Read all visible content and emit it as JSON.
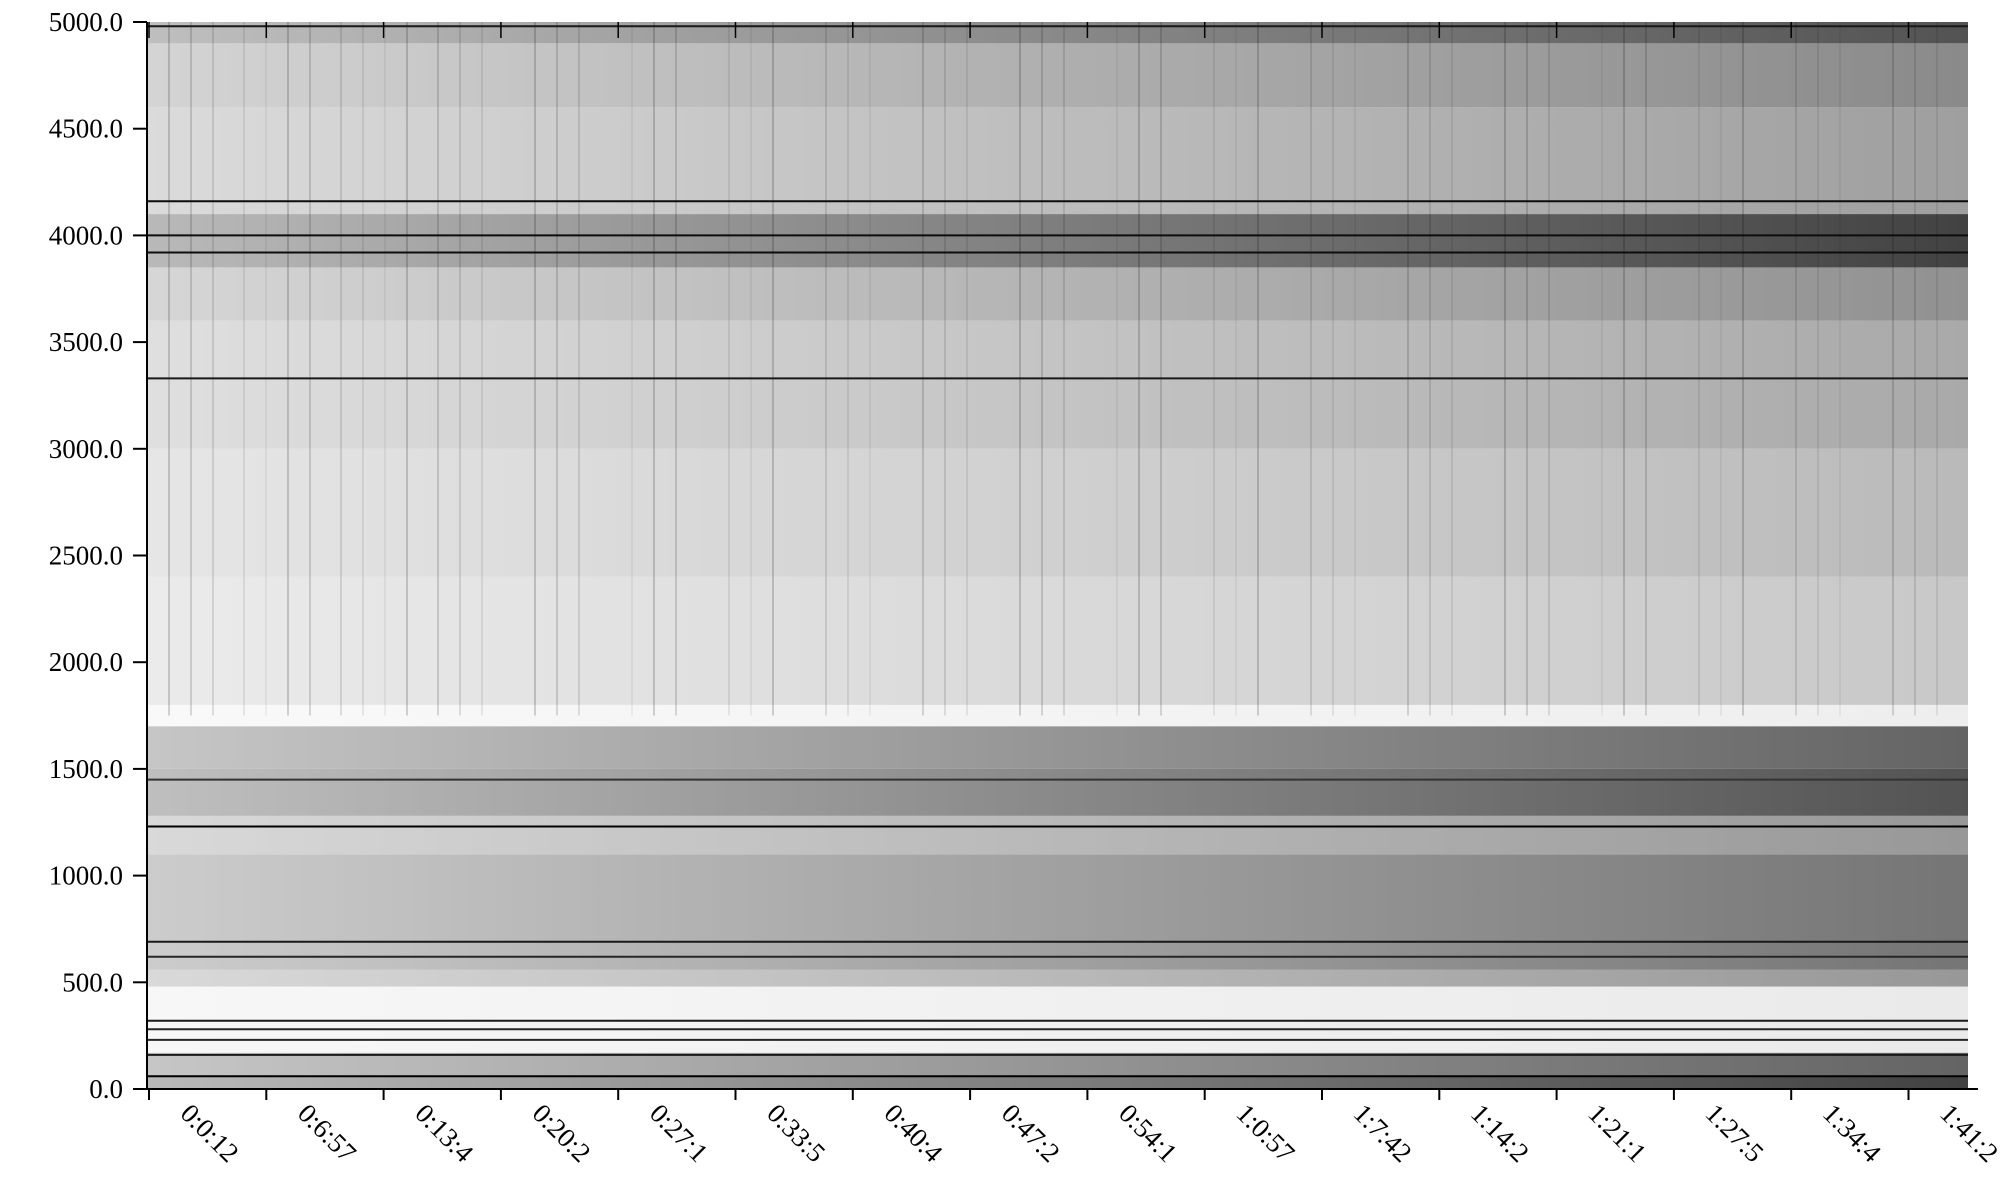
{
  "chart_data": {
    "type": "heatmap",
    "title": "",
    "xlabel": "",
    "ylabel": "",
    "ylim": [
      0,
      5000
    ],
    "y_ticks": [
      "0.0",
      "500.0",
      "1000.0",
      "1500.0",
      "2000.0",
      "2500.0",
      "3000.0",
      "3500.0",
      "4000.0",
      "4500.0",
      "5000.0"
    ],
    "y_tick_values": [
      0,
      500,
      1000,
      1500,
      2000,
      2500,
      3000,
      3500,
      4000,
      4500,
      5000
    ],
    "x_ticks": [
      "0:0:12",
      "0:6:57",
      "0:13:4",
      "0:20:2",
      "0:27:1",
      "0:33:5",
      "0:40:4",
      "0:47:2",
      "0:54:1",
      "1:0:57",
      "1:7:42",
      "1:14:2",
      "1:21:1",
      "1:27:5",
      "1:34:4",
      "1:41:2"
    ],
    "colormap": [
      "#ffffff",
      "#000000"
    ],
    "grid": false,
    "legend": "none",
    "value_range": [
      0,
      1
    ],
    "bands": [
      {
        "y": [
          0,
          60
        ],
        "intensity": 0.55
      },
      {
        "y": [
          60,
          170
        ],
        "intensity": 0.45
      },
      {
        "y": [
          170,
          480
        ],
        "intensity": 0.06
      },
      {
        "y": [
          480,
          560
        ],
        "intensity": 0.3
      },
      {
        "y": [
          560,
          1100
        ],
        "intensity": 0.4
      },
      {
        "y": [
          1100,
          1280
        ],
        "intensity": 0.3
      },
      {
        "y": [
          1280,
          1500
        ],
        "intensity": 0.5
      },
      {
        "y": [
          1500,
          1700
        ],
        "intensity": 0.45
      },
      {
        "y": [
          1700,
          1800
        ],
        "intensity": 0.05
      },
      {
        "y": [
          1800,
          2400
        ],
        "intensity": 0.16
      },
      {
        "y": [
          2400,
          3000
        ],
        "intensity": 0.2
      },
      {
        "y": [
          3000,
          3600
        ],
        "intensity": 0.25
      },
      {
        "y": [
          3600,
          3850
        ],
        "intensity": 0.32
      },
      {
        "y": [
          3850,
          4100
        ],
        "intensity": 0.55
      },
      {
        "y": [
          4100,
          4600
        ],
        "intensity": 0.28
      },
      {
        "y": [
          4600,
          4900
        ],
        "intensity": 0.34
      },
      {
        "y": [
          4900,
          5000
        ],
        "intensity": 0.5
      }
    ],
    "lines": [
      {
        "y": 60,
        "intensity": 1.0
      },
      {
        "y": 160,
        "intensity": 0.9
      },
      {
        "y": 230,
        "intensity": 0.85
      },
      {
        "y": 280,
        "intensity": 0.85
      },
      {
        "y": 320,
        "intensity": 0.9
      },
      {
        "y": 620,
        "intensity": 0.85
      },
      {
        "y": 690,
        "intensity": 0.9
      },
      {
        "y": 1230,
        "intensity": 1.0
      },
      {
        "y": 1450,
        "intensity": 0.8
      },
      {
        "y": 3330,
        "intensity": 0.9
      },
      {
        "y": 3920,
        "intensity": 0.95
      },
      {
        "y": 4000,
        "intensity": 0.95
      },
      {
        "y": 4160,
        "intensity": 0.95
      },
      {
        "y": 4980,
        "intensity": 0.9
      }
    ]
  }
}
